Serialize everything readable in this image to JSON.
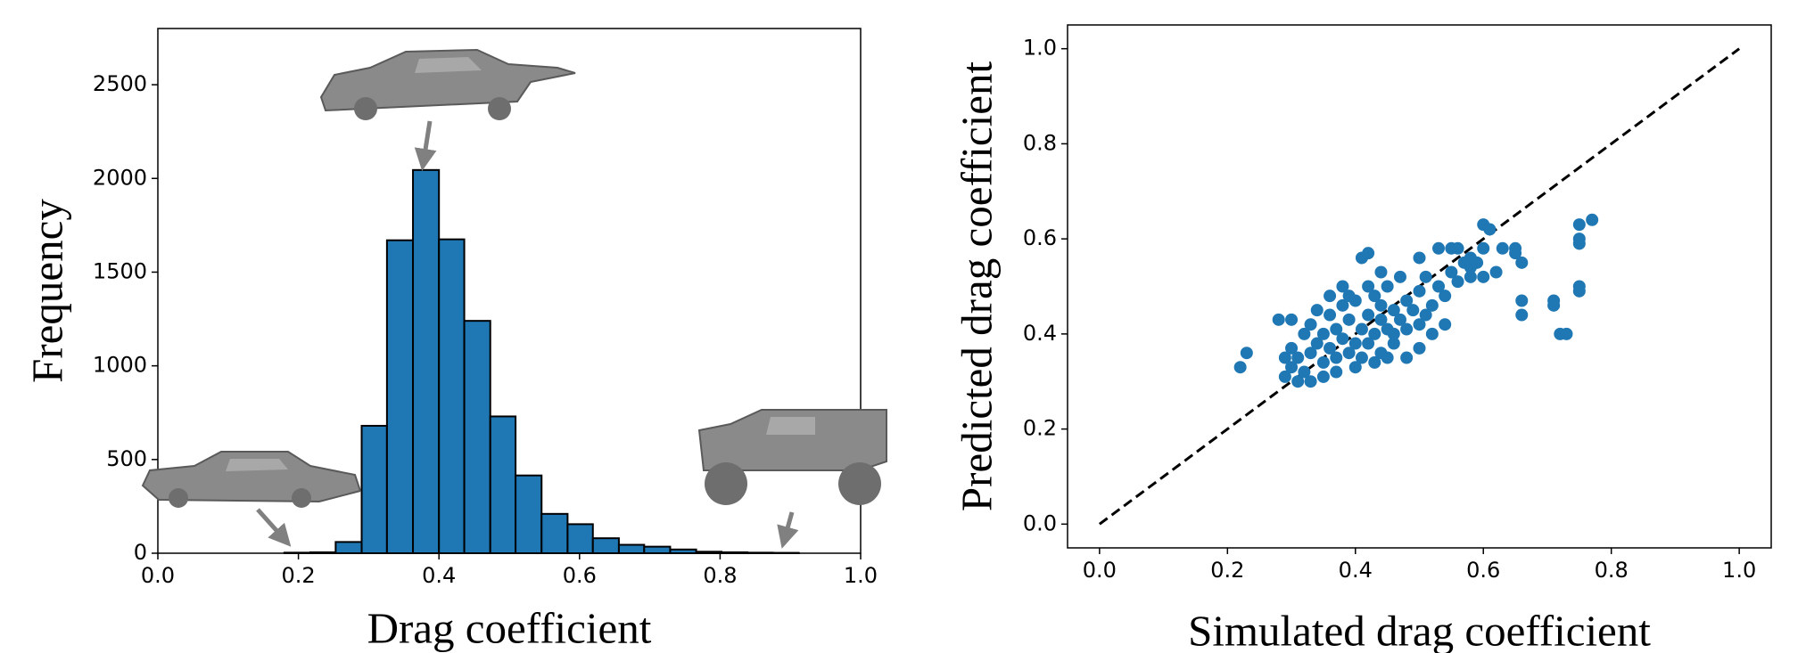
{
  "chart_data": [
    {
      "type": "histogram",
      "xlabel": "Drag coefficient",
      "ylabel": "Frequency",
      "bins": [
        0.18,
        0.217,
        0.253,
        0.29,
        0.326,
        0.363,
        0.4,
        0.436,
        0.473,
        0.509,
        0.546,
        0.583,
        0.619,
        0.656,
        0.692,
        0.729,
        0.766,
        0.802,
        0.839,
        0.875,
        0.912
      ],
      "counts": [
        3,
        5,
        60,
        680,
        1670,
        2045,
        1675,
        1240,
        730,
        415,
        210,
        155,
        80,
        45,
        35,
        20,
        8,
        5,
        3,
        2
      ],
      "color": "#1f77b4",
      "edgecolor": "#000000",
      "xlim": [
        0,
        1
      ],
      "ylim": [
        0,
        2800
      ],
      "xticks": [
        {
          "value": 0,
          "label": "0.0"
        },
        {
          "value": 0.2,
          "label": "0.2"
        },
        {
          "value": 0.4,
          "label": "0.4"
        },
        {
          "value": 0.6,
          "label": "0.6"
        },
        {
          "value": 0.8,
          "label": "0.8"
        },
        {
          "value": 1,
          "label": "1.0"
        }
      ],
      "yticks": [
        0,
        500,
        1000,
        1500,
        2000,
        2500
      ],
      "grid": false
    },
    {
      "type": "scatter",
      "xlabel": "Simulated drag coefficient",
      "ylabel": "Predicted drag coefficient",
      "color": "#1f77b4",
      "x": [
        0.29,
        0.3,
        0.31,
        0.3,
        0.32,
        0.33,
        0.32,
        0.34,
        0.33,
        0.35,
        0.35,
        0.36,
        0.36,
        0.37,
        0.37,
        0.38,
        0.38,
        0.39,
        0.39,
        0.4,
        0.4,
        0.41,
        0.41,
        0.42,
        0.42,
        0.43,
        0.43,
        0.44,
        0.44,
        0.45,
        0.45,
        0.46,
        0.46,
        0.47,
        0.47,
        0.48,
        0.48,
        0.49,
        0.5,
        0.5,
        0.51,
        0.52,
        0.53,
        0.54,
        0.55,
        0.56,
        0.57,
        0.58,
        0.59,
        0.6,
        0.34,
        0.36,
        0.38,
        0.31,
        0.35,
        0.4,
        0.45,
        0.5,
        0.48,
        0.52,
        0.54,
        0.44,
        0.39,
        0.42,
        0.29,
        0.33,
        0.37,
        0.43,
        0.46,
        0.51,
        0.22,
        0.23,
        0.28,
        0.3,
        0.6,
        0.61,
        0.63,
        0.65,
        0.65,
        0.66,
        0.66,
        0.66,
        0.71,
        0.71,
        0.72,
        0.73,
        0.75,
        0.75,
        0.75,
        0.75,
        0.75,
        0.77,
        0.55,
        0.56,
        0.53,
        0.5,
        0.41,
        0.42,
        0.44,
        0.58,
        0.58,
        0.62,
        0.6
      ],
      "y": [
        0.31,
        0.33,
        0.35,
        0.37,
        0.32,
        0.36,
        0.4,
        0.38,
        0.42,
        0.34,
        0.4,
        0.44,
        0.37,
        0.35,
        0.41,
        0.46,
        0.39,
        0.36,
        0.43,
        0.38,
        0.47,
        0.41,
        0.35,
        0.44,
        0.38,
        0.4,
        0.48,
        0.36,
        0.43,
        0.41,
        0.5,
        0.45,
        0.38,
        0.43,
        0.52,
        0.47,
        0.41,
        0.45,
        0.49,
        0.42,
        0.52,
        0.46,
        0.5,
        0.48,
        0.53,
        0.51,
        0.55,
        0.52,
        0.55,
        0.58,
        0.45,
        0.48,
        0.5,
        0.3,
        0.31,
        0.33,
        0.35,
        0.37,
        0.35,
        0.4,
        0.42,
        0.46,
        0.48,
        0.5,
        0.35,
        0.3,
        0.32,
        0.34,
        0.4,
        0.44,
        0.33,
        0.36,
        0.43,
        0.43,
        0.63,
        0.62,
        0.58,
        0.57,
        0.58,
        0.55,
        0.47,
        0.44,
        0.47,
        0.46,
        0.4,
        0.4,
        0.63,
        0.6,
        0.59,
        0.5,
        0.49,
        0.64,
        0.58,
        0.58,
        0.58,
        0.56,
        0.56,
        0.57,
        0.53,
        0.56,
        0.54,
        0.53,
        0.52
      ],
      "reference_line": {
        "x": [
          0,
          1
        ],
        "y": [
          0,
          1
        ],
        "color": "#000000",
        "style": "dashed"
      },
      "xlim": [
        -0.05,
        1.05
      ],
      "ylim": [
        -0.05,
        1.05
      ],
      "xticks": [
        {
          "value": 0,
          "label": "0.0"
        },
        {
          "value": 0.2,
          "label": "0.2"
        },
        {
          "value": 0.4,
          "label": "0.4"
        },
        {
          "value": 0.6,
          "label": "0.6"
        },
        {
          "value": 0.8,
          "label": "0.8"
        },
        {
          "value": 1,
          "label": "1.0"
        }
      ],
      "yticks": [
        {
          "value": 0,
          "label": "0.0"
        },
        {
          "value": 0.2,
          "label": "0.2"
        },
        {
          "value": 0.4,
          "label": "0.4"
        },
        {
          "value": 0.6,
          "label": "0.6"
        },
        {
          "value": 0.8,
          "label": "0.8"
        },
        {
          "value": 1,
          "label": "1.0"
        }
      ],
      "grid": false
    }
  ]
}
